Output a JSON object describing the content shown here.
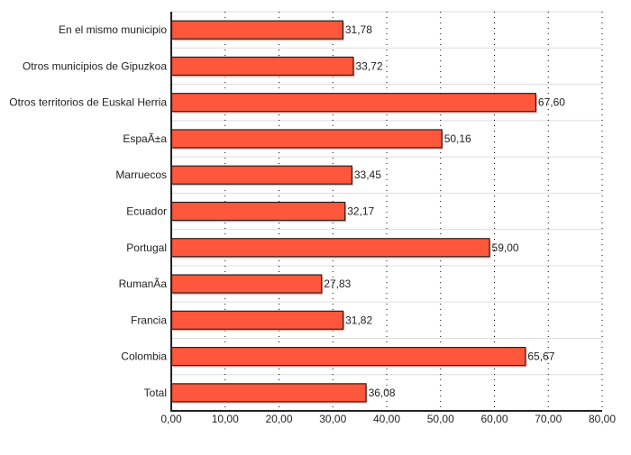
{
  "chart_data": {
    "type": "bar",
    "orientation": "horizontal",
    "title": "",
    "xlabel": "",
    "ylabel": "",
    "categories": [
      "En el mismo municipio",
      "Otros municipios de Gipuzkoa",
      "Otros territorios de Euskal Herria",
      "EspaÃ±a",
      "Marruecos",
      "Ecuador",
      "Portugal",
      "RumanÃ­a",
      "Francia",
      "Colombia",
      "Total"
    ],
    "values": [
      31.78,
      33.72,
      67.6,
      50.16,
      33.45,
      32.17,
      59.0,
      27.83,
      31.82,
      65.67,
      36.08
    ],
    "value_labels": [
      "31,78",
      "33,72",
      "67,60",
      "50,16",
      "33,45",
      "32,17",
      "59,00",
      "27,83",
      "31,82",
      "65,67",
      "36,08"
    ],
    "xlim": [
      0,
      80
    ],
    "xticks": [
      0,
      10,
      20,
      30,
      40,
      50,
      60,
      70,
      80
    ],
    "xtick_labels": [
      "0,00",
      "10,00",
      "20,00",
      "30,00",
      "40,00",
      "50,00",
      "60,00",
      "70,00",
      "80,00"
    ],
    "grid": true,
    "bar_color": "#FF573B",
    "legend": "none"
  }
}
